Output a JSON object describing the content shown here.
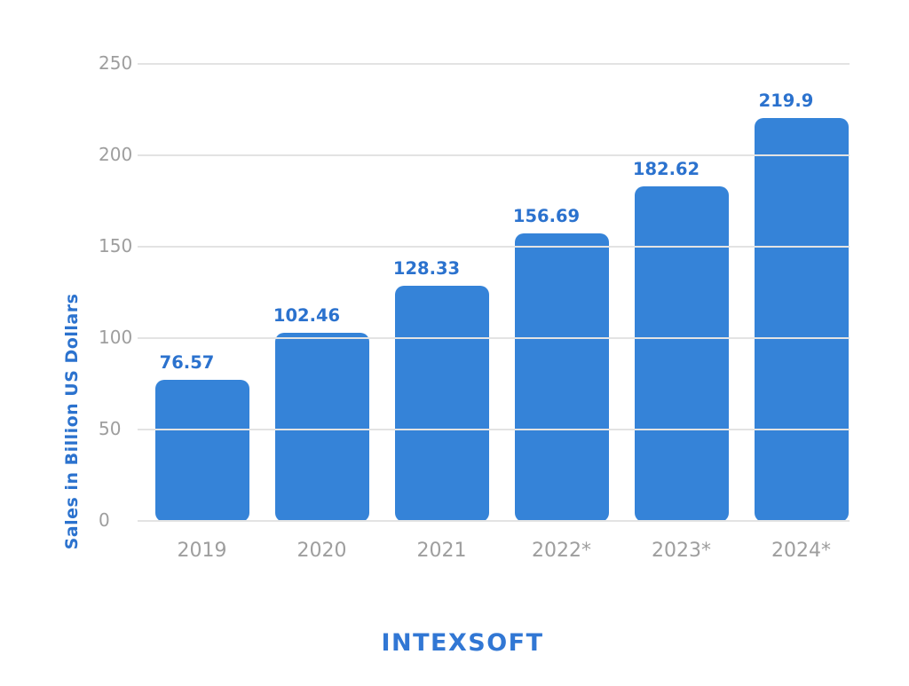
{
  "chart_data": {
    "type": "bar",
    "title": "",
    "categories": [
      "2019",
      "2020",
      "2021",
      "2022*",
      "2023*",
      "2024*"
    ],
    "values": [
      76.57,
      102.46,
      128.33,
      156.69,
      182.62,
      219.9
    ],
    "value_labels": [
      "76.57",
      "102.46",
      "128.33",
      "156.69",
      "182.62",
      "219.9"
    ],
    "xlabel": "",
    "ylabel": "Sales in Billion US Dollars",
    "ylim": [
      0,
      250
    ],
    "yticks": [
      0,
      50,
      100,
      150,
      200,
      250
    ],
    "grid": true,
    "legend": false,
    "colors": {
      "bar": "#3583D8",
      "value_label": "#2B72CE",
      "axis_title": "#2B72CE",
      "tick_label": "#9E9E9E",
      "gridline": "#E3E3E3",
      "background": "#FFFFFF"
    }
  },
  "footer": {
    "logo_text": "INTEXSOFT"
  }
}
